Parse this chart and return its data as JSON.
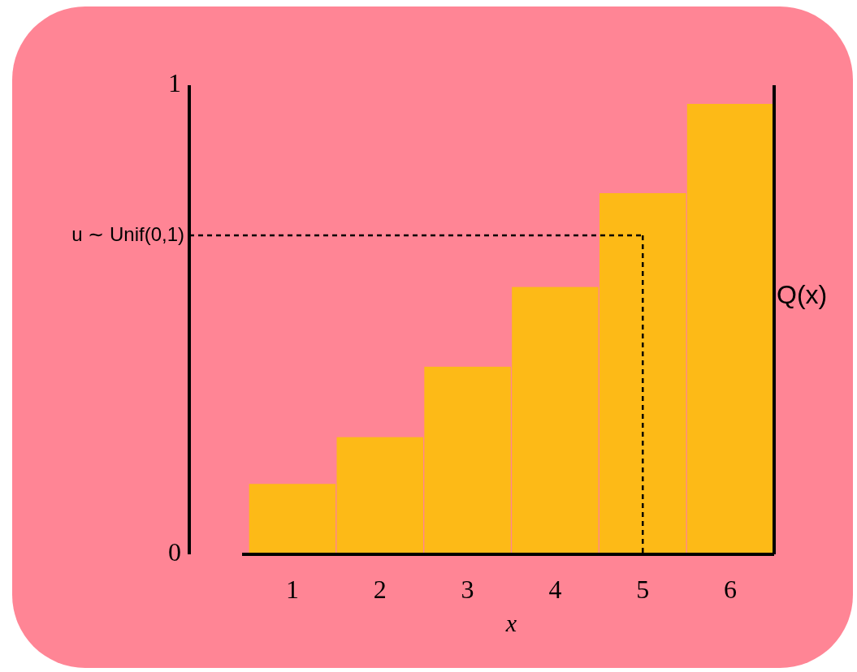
{
  "chart_data": {
    "type": "bar",
    "xlabel": "x",
    "categories": [
      "1",
      "2",
      "3",
      "4",
      "5",
      "6"
    ],
    "y2label": "Q(x)",
    "series": [
      {
        "color": "#fdba17",
        "values": [
          0.15,
          0.25,
          0.4,
          0.57,
          0.77,
          0.96
        ]
      }
    ],
    "ylim": [
      0,
      1
    ],
    "yticks": [
      0,
      1
    ],
    "ref_lines": [
      {
        "axis": "y",
        "value": 0.68,
        "label": "u ∼ Unif(0,1)",
        "line_style": "dashed"
      },
      {
        "axis": "x",
        "value": "5",
        "line_style": "dashed"
      }
    ]
  }
}
